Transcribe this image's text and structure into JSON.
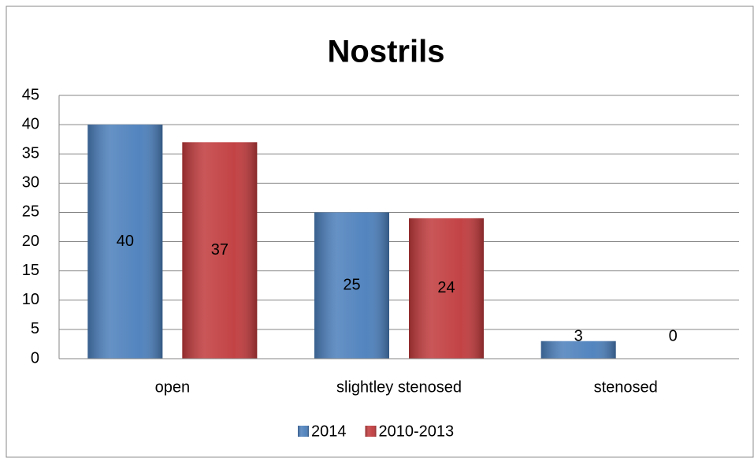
{
  "chart_data": {
    "type": "bar",
    "title": "Nostrils",
    "categories": [
      "open",
      "slightley stenosed",
      "stenosed"
    ],
    "series": [
      {
        "name": "2014",
        "color": "#4a7ebb",
        "values": [
          40,
          25,
          3
        ]
      },
      {
        "name": "2010-2013",
        "color": "#c0393b",
        "values": [
          37,
          24,
          0
        ]
      }
    ],
    "ylim": [
      0,
      45
    ],
    "yticks": [
      0,
      5,
      10,
      15,
      20,
      25,
      30,
      35,
      40,
      45
    ],
    "grid": true,
    "legend": "bottom"
  }
}
